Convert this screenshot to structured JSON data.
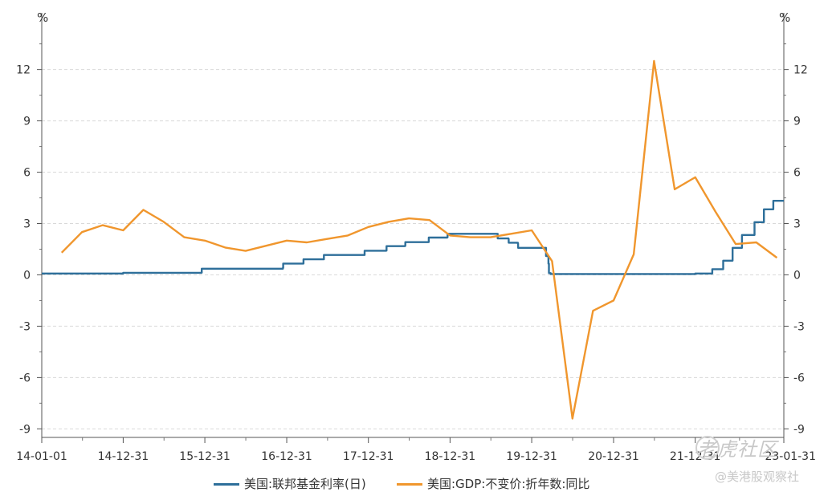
{
  "chart_data": {
    "type": "line",
    "left_unit": "%",
    "right_unit": "%",
    "ylim": [
      -9.5,
      14
    ],
    "y_ticks": [
      12,
      9,
      6,
      3,
      0,
      -3,
      -6,
      -9
    ],
    "y_tick_labels": [
      "12",
      "9",
      "6",
      "3",
      "0",
      "-3",
      "-6",
      "-9"
    ],
    "x_range": [
      "2014-01-01",
      "2023-01-31"
    ],
    "x_ticks": [
      "2014-01-01",
      "2014-12-31",
      "2015-12-31",
      "2016-12-31",
      "2017-12-31",
      "2018-12-31",
      "2019-12-31",
      "2020-12-31",
      "2021-12-31",
      "2023-01-31"
    ],
    "x_tick_labels": [
      "14-01-01",
      "14-12-31",
      "15-12-31",
      "16-12-31",
      "17-12-31",
      "18-12-31",
      "19-12-31",
      "20-12-31",
      "21-12-31",
      "23-01-31"
    ],
    "grid": true,
    "legend_position": "bottom",
    "series": [
      {
        "name": "美国:联邦基金利率(日)",
        "color": "#2e6f9a",
        "step": true,
        "points": [
          [
            "2014-01-01",
            0.08
          ],
          [
            "2014-12-31",
            0.12
          ],
          [
            "2015-12-16",
            0.13
          ],
          [
            "2015-12-17",
            0.36
          ],
          [
            "2016-12-14",
            0.41
          ],
          [
            "2016-12-15",
            0.66
          ],
          [
            "2017-03-15",
            0.66
          ],
          [
            "2017-03-16",
            0.91
          ],
          [
            "2017-06-14",
            0.91
          ],
          [
            "2017-06-15",
            1.16
          ],
          [
            "2017-12-13",
            1.16
          ],
          [
            "2017-12-14",
            1.41
          ],
          [
            "2018-03-21",
            1.42
          ],
          [
            "2018-03-22",
            1.68
          ],
          [
            "2018-06-13",
            1.7
          ],
          [
            "2018-06-14",
            1.91
          ],
          [
            "2018-09-26",
            1.92
          ],
          [
            "2018-09-27",
            2.18
          ],
          [
            "2018-12-19",
            2.2
          ],
          [
            "2018-12-20",
            2.4
          ],
          [
            "2019-07-31",
            2.4
          ],
          [
            "2019-08-01",
            2.13
          ],
          [
            "2019-09-18",
            2.1
          ],
          [
            "2019-09-19",
            1.88
          ],
          [
            "2019-10-30",
            1.83
          ],
          [
            "2019-10-31",
            1.58
          ],
          [
            "2020-03-02",
            1.58
          ],
          [
            "2020-03-04",
            1.1
          ],
          [
            "2020-03-15",
            0.65
          ],
          [
            "2020-03-17",
            0.1
          ],
          [
            "2020-03-25",
            0.05
          ],
          [
            "2021-12-31",
            0.08
          ],
          [
            "2022-03-16",
            0.08
          ],
          [
            "2022-03-17",
            0.33
          ],
          [
            "2022-05-04",
            0.33
          ],
          [
            "2022-05-05",
            0.83
          ],
          [
            "2022-06-15",
            0.83
          ],
          [
            "2022-06-16",
            1.58
          ],
          [
            "2022-07-27",
            1.58
          ],
          [
            "2022-07-28",
            2.33
          ],
          [
            "2022-09-21",
            2.33
          ],
          [
            "2022-09-22",
            3.08
          ],
          [
            "2022-11-02",
            3.08
          ],
          [
            "2022-11-03",
            3.83
          ],
          [
            "2022-12-14",
            3.83
          ],
          [
            "2022-12-15",
            4.33
          ],
          [
            "2023-01-31",
            4.33
          ]
        ]
      },
      {
        "name": "美国:GDP:不变价:折年数:同比",
        "color": "#f0962d",
        "step": false,
        "points": [
          [
            "2014-03-31",
            1.3
          ],
          [
            "2014-06-30",
            2.5
          ],
          [
            "2014-09-30",
            2.9
          ],
          [
            "2014-12-31",
            2.6
          ],
          [
            "2015-03-31",
            3.8
          ],
          [
            "2015-06-30",
            3.1
          ],
          [
            "2015-09-30",
            2.2
          ],
          [
            "2015-12-31",
            2.0
          ],
          [
            "2016-03-31",
            1.6
          ],
          [
            "2016-06-30",
            1.4
          ],
          [
            "2016-09-30",
            1.7
          ],
          [
            "2016-12-31",
            2.0
          ],
          [
            "2017-03-31",
            1.9
          ],
          [
            "2017-06-30",
            2.1
          ],
          [
            "2017-09-30",
            2.3
          ],
          [
            "2017-12-31",
            2.8
          ],
          [
            "2018-03-31",
            3.1
          ],
          [
            "2018-06-30",
            3.3
          ],
          [
            "2018-09-30",
            3.2
          ],
          [
            "2018-12-31",
            2.3
          ],
          [
            "2019-03-31",
            2.2
          ],
          [
            "2019-06-30",
            2.2
          ],
          [
            "2019-09-30",
            2.4
          ],
          [
            "2019-12-31",
            2.6
          ],
          [
            "2020-03-31",
            0.8
          ],
          [
            "2020-06-30",
            -8.4
          ],
          [
            "2020-09-30",
            -2.1
          ],
          [
            "2020-12-31",
            -1.5
          ],
          [
            "2021-03-31",
            1.2
          ],
          [
            "2021-06-30",
            12.5
          ],
          [
            "2021-09-30",
            5.0
          ],
          [
            "2021-12-31",
            5.7
          ],
          [
            "2022-03-31",
            3.7
          ],
          [
            "2022-06-30",
            1.8
          ],
          [
            "2022-09-30",
            1.9
          ],
          [
            "2022-12-31",
            1.0
          ]
        ]
      }
    ]
  },
  "watermark": {
    "line1": "老虎社区",
    "line2": "@美港股观察社"
  }
}
